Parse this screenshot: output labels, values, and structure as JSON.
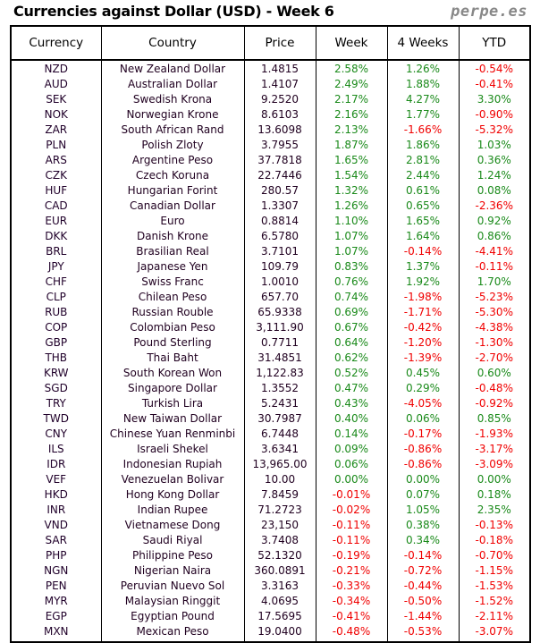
{
  "title": "Currencies against Dollar (USD) - Week 6",
  "brand": "perpe.es",
  "colors": {
    "positive": "#1a8a1a",
    "negative": "#f00000"
  },
  "headers": [
    "Currency",
    "Country",
    "Price",
    "Week",
    "4 Weeks",
    "YTD"
  ],
  "rows": [
    [
      "NZD",
      "New Zealand Dollar",
      "1.4815",
      "2.58%",
      "1.26%",
      "-0.54%"
    ],
    [
      "AUD",
      "Australian Dollar",
      "1.4107",
      "2.49%",
      "1.88%",
      "-0.41%"
    ],
    [
      "SEK",
      "Swedish Krona",
      "9.2520",
      "2.17%",
      "4.27%",
      "3.30%"
    ],
    [
      "NOK",
      "Norwegian Krone",
      "8.6103",
      "2.16%",
      "1.77%",
      "-0.90%"
    ],
    [
      "ZAR",
      "South African Rand",
      "13.6098",
      "2.13%",
      "-1.66%",
      "-5.32%"
    ],
    [
      "PLN",
      "Polish Zloty",
      "3.7955",
      "1.87%",
      "1.86%",
      "1.03%"
    ],
    [
      "ARS",
      "Argentine Peso",
      "37.7818",
      "1.65%",
      "2.81%",
      "0.36%"
    ],
    [
      "CZK",
      "Czech Koruna",
      "22.7446",
      "1.54%",
      "2.44%",
      "1.24%"
    ],
    [
      "HUF",
      "Hungarian Forint",
      "280.57",
      "1.32%",
      "0.61%",
      "0.08%"
    ],
    [
      "CAD",
      "Canadian Dollar",
      "1.3307",
      "1.26%",
      "0.65%",
      "-2.36%"
    ],
    [
      "EUR",
      "Euro",
      "0.8814",
      "1.10%",
      "1.65%",
      "0.92%"
    ],
    [
      "DKK",
      "Danish Krone",
      "6.5780",
      "1.07%",
      "1.64%",
      "0.86%"
    ],
    [
      "BRL",
      "Brasilian Real",
      "3.7101",
      "1.07%",
      "-0.14%",
      "-4.41%"
    ],
    [
      "JPY",
      "Japanese Yen",
      "109.79",
      "0.83%",
      "1.37%",
      "-0.11%"
    ],
    [
      "CHF",
      "Swiss Franc",
      "1.0010",
      "0.76%",
      "1.92%",
      "1.70%"
    ],
    [
      "CLP",
      "Chilean Peso",
      "657.70",
      "0.74%",
      "-1.98%",
      "-5.23%"
    ],
    [
      "RUB",
      "Russian Rouble",
      "65.9338",
      "0.69%",
      "-1.71%",
      "-5.30%"
    ],
    [
      "COP",
      "Colombian Peso",
      "3,111.90",
      "0.67%",
      "-0.42%",
      "-4.38%"
    ],
    [
      "GBP",
      "Pound Sterling",
      "0.7711",
      "0.64%",
      "-1.20%",
      "-1.30%"
    ],
    [
      "THB",
      "Thai Baht",
      "31.4851",
      "0.62%",
      "-1.39%",
      "-2.70%"
    ],
    [
      "KRW",
      "South Korean Won",
      "1,122.83",
      "0.52%",
      "0.45%",
      "0.60%"
    ],
    [
      "SGD",
      "Singapore Dollar",
      "1.3552",
      "0.47%",
      "0.29%",
      "-0.48%"
    ],
    [
      "TRY",
      "Turkish Lira",
      "5.2431",
      "0.43%",
      "-4.05%",
      "-0.92%"
    ],
    [
      "TWD",
      "New Taiwan Dollar",
      "30.7987",
      "0.40%",
      "0.06%",
      "0.85%"
    ],
    [
      "CNY",
      "Chinese Yuan Renminbi",
      "6.7448",
      "0.14%",
      "-0.17%",
      "-1.93%"
    ],
    [
      "ILS",
      "Israeli Shekel",
      "3.6341",
      "0.09%",
      "-0.86%",
      "-3.17%"
    ],
    [
      "IDR",
      "Indonesian Rupiah",
      "13,965.00",
      "0.06%",
      "-0.86%",
      "-3.09%"
    ],
    [
      "VEF",
      "Venezuelan Bolivar",
      "10.00",
      "0.00%",
      "0.00%",
      "0.00%"
    ],
    [
      "HKD",
      "Hong Kong Dollar",
      "7.8459",
      "-0.01%",
      "0.07%",
      "0.18%"
    ],
    [
      "INR",
      "Indian Rupee",
      "71.2723",
      "-0.02%",
      "1.05%",
      "2.35%"
    ],
    [
      "VND",
      "Vietnamese Dong",
      "23,150",
      "-0.11%",
      "0.38%",
      "-0.13%"
    ],
    [
      "SAR",
      "Saudi Riyal",
      "3.7408",
      "-0.11%",
      "0.34%",
      "-0.18%"
    ],
    [
      "PHP",
      "Philippine Peso",
      "52.1320",
      "-0.19%",
      "-0.14%",
      "-0.70%"
    ],
    [
      "NGN",
      "Nigerian Naira",
      "360.0891",
      "-0.21%",
      "-0.72%",
      "-1.15%"
    ],
    [
      "PEN",
      "Peruvian Nuevo Sol",
      "3.3163",
      "-0.33%",
      "-0.44%",
      "-1.53%"
    ],
    [
      "MYR",
      "Malaysian Ringgit",
      "4.0695",
      "-0.34%",
      "-0.50%",
      "-1.52%"
    ],
    [
      "EGP",
      "Egyptian Pound",
      "17.5695",
      "-0.41%",
      "-1.44%",
      "-2.11%"
    ],
    [
      "MXN",
      "Mexican Peso",
      "19.0400",
      "-0.48%",
      "-0.53%",
      "-3.07%"
    ]
  ]
}
